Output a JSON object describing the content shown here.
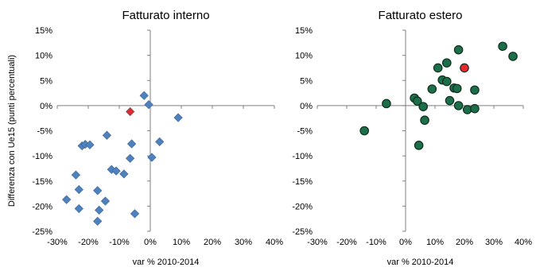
{
  "chart_data": [
    {
      "type": "scatter",
      "title": "Fatturato interno",
      "xlabel": "var % 2010-2014",
      "ylabel": "Differenza con Ue15 (punti percentuali)",
      "xlim": [
        -30,
        40
      ],
      "ylim": [
        -25,
        15
      ],
      "x_ticks": [
        "-30%",
        "-20%",
        "-10%",
        "0%",
        "10%",
        "20%",
        "30%",
        "40%"
      ],
      "y_ticks": [
        "15%",
        "10%",
        "5%",
        "0%",
        "-5%",
        "-10%",
        "-15%",
        "-20%",
        "-25%"
      ],
      "marker": "diamond",
      "colors": {
        "points": "#4f81bd",
        "highlight": "#e8262d"
      },
      "grid": false,
      "legend": "none",
      "points": [
        [
          -27,
          -18.7
        ],
        [
          -24,
          -13.8
        ],
        [
          -23,
          -16.7
        ],
        [
          -23,
          -20.5
        ],
        [
          -22,
          -8.0
        ],
        [
          -21,
          -7.7
        ],
        [
          -19.5,
          -7.8
        ],
        [
          -17,
          -16.9
        ],
        [
          -16.5,
          -20.8
        ],
        [
          -17,
          -23.0
        ],
        [
          -14.5,
          -19.0
        ],
        [
          -14,
          -5.9
        ],
        [
          -12.5,
          -12.7
        ],
        [
          -11,
          -13.0
        ],
        [
          -8.5,
          -13.6
        ],
        [
          -6.5,
          -10.5
        ],
        [
          -6,
          -7.6
        ],
        [
          -5,
          -21.5
        ],
        [
          -2,
          2.0
        ],
        [
          -0.5,
          0.2
        ],
        [
          0.5,
          -10.3
        ],
        [
          3,
          -7.2
        ],
        [
          9,
          -2.4
        ]
      ],
      "highlight": [
        [
          -6.5,
          -1.2
        ]
      ]
    },
    {
      "type": "scatter",
      "title": "Fatturato estero",
      "xlabel": "var % 2010-2014",
      "ylabel": "",
      "xlim": [
        -30,
        40
      ],
      "ylim": [
        -25,
        15
      ],
      "x_ticks": [
        "-30%",
        "-20%",
        "-10%",
        "0%",
        "10%",
        "20%",
        "30%",
        "40%"
      ],
      "y_ticks": [
        "15%",
        "10%",
        "5%",
        "0%",
        "-5%",
        "-10%",
        "-15%",
        "-20%",
        "-25%"
      ],
      "marker": "circle",
      "colors": {
        "points": "#1d6e49",
        "highlight": "#e8262d"
      },
      "grid": false,
      "legend": "none",
      "points": [
        [
          -14,
          -5.0
        ],
        [
          -6.5,
          0.4
        ],
        [
          3,
          1.5
        ],
        [
          4,
          0.9
        ],
        [
          4.5,
          -7.9
        ],
        [
          6,
          -0.2
        ],
        [
          6.5,
          -2.9
        ],
        [
          9,
          3.3
        ],
        [
          11,
          7.5
        ],
        [
          12.5,
          5.1
        ],
        [
          14,
          4.8
        ],
        [
          14,
          8.5
        ],
        [
          15,
          1.0
        ],
        [
          16.5,
          3.5
        ],
        [
          17.5,
          3.4
        ],
        [
          18,
          11.1
        ],
        [
          18,
          0.0
        ],
        [
          21,
          -0.8
        ],
        [
          23.5,
          -0.6
        ],
        [
          23.5,
          3.1
        ],
        [
          33,
          11.8
        ],
        [
          36.5,
          9.8
        ]
      ],
      "highlight": [
        [
          20,
          7.5
        ]
      ]
    }
  ]
}
